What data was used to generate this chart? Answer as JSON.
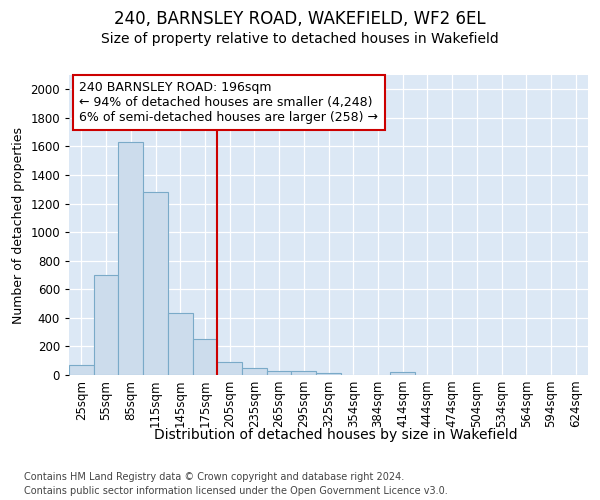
{
  "title1": "240, BARNSLEY ROAD, WAKEFIELD, WF2 6EL",
  "title2": "Size of property relative to detached houses in Wakefield",
  "xlabel": "Distribution of detached houses by size in Wakefield",
  "ylabel": "Number of detached properties",
  "footnote1": "Contains HM Land Registry data © Crown copyright and database right 2024.",
  "footnote2": "Contains public sector information licensed under the Open Government Licence v3.0.",
  "annotation_line1": "240 BARNSLEY ROAD: 196sqm",
  "annotation_line2": "← 94% of detached houses are smaller (4,248)",
  "annotation_line3": "6% of semi-detached houses are larger (258) →",
  "bar_color": "#ccdcec",
  "bar_edge_color": "#7aaac8",
  "reference_line_color": "#cc0000",
  "categories": [
    "25sqm",
    "55sqm",
    "85sqm",
    "115sqm",
    "145sqm",
    "175sqm",
    "205sqm",
    "235sqm",
    "265sqm",
    "295sqm",
    "325sqm",
    "354sqm",
    "384sqm",
    "414sqm",
    "444sqm",
    "474sqm",
    "504sqm",
    "534sqm",
    "564sqm",
    "594sqm",
    "624sqm"
  ],
  "values": [
    68,
    700,
    1630,
    1280,
    435,
    255,
    90,
    52,
    30,
    25,
    15,
    0,
    0,
    18,
    0,
    0,
    0,
    0,
    0,
    0,
    0
  ],
  "ylim": [
    0,
    2100
  ],
  "yticks": [
    0,
    200,
    400,
    600,
    800,
    1000,
    1200,
    1400,
    1600,
    1800,
    2000
  ],
  "background_color": "#dce8f5",
  "grid_color": "#ffffff",
  "figure_bg": "#ffffff",
  "title_fontsize": 12,
  "subtitle_fontsize": 10,
  "ylabel_fontsize": 9,
  "xlabel_fontsize": 10,
  "tick_fontsize": 8.5,
  "annot_fontsize": 9,
  "footnote_fontsize": 7
}
